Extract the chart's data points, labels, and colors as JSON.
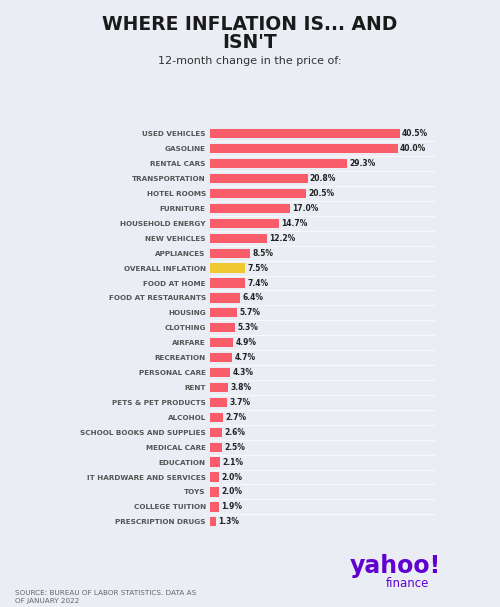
{
  "title_line1": "WHERE INFLATION IS... AND",
  "title_line2": "ISN'T",
  "subtitle": "12-month change in the price of:",
  "categories": [
    "USED VEHICLES",
    "GASOLINE",
    "RENTAL CARS",
    "TRANSPORTATION",
    "HOTEL ROOMS",
    "FURNITURE",
    "HOUSEHOLD ENERGY",
    "NEW VEHICLES",
    "APPLIANCES",
    "OVERALL INFLATION",
    "FOOD AT HOME",
    "FOOD AT RESTAURANTS",
    "HOUSING",
    "CLOTHING",
    "AIRFARE",
    "RECREATION",
    "PERSONAL CARE",
    "RENT",
    "PETS & PET PRODUCTS",
    "ALCOHOL",
    "SCHOOL BOOKS AND SUPPLIES",
    "MEDICAL CARE",
    "EDUCATION",
    "IT HARDWARE AND SERVICES",
    "TOYS",
    "COLLEGE TUITION",
    "PRESCRIPTION DRUGS"
  ],
  "values": [
    40.5,
    40.0,
    29.3,
    20.8,
    20.5,
    17.0,
    14.7,
    12.2,
    8.5,
    7.5,
    7.4,
    6.4,
    5.7,
    5.3,
    4.9,
    4.7,
    4.3,
    3.8,
    3.7,
    2.7,
    2.6,
    2.5,
    2.1,
    2.0,
    2.0,
    1.9,
    1.3
  ],
  "bar_colors": [
    "#f95d6a",
    "#f95d6a",
    "#f95d6a",
    "#f95d6a",
    "#f95d6a",
    "#f95d6a",
    "#f95d6a",
    "#f95d6a",
    "#f95d6a",
    "#f0c830",
    "#f95d6a",
    "#f95d6a",
    "#f95d6a",
    "#f95d6a",
    "#f95d6a",
    "#f95d6a",
    "#f95d6a",
    "#f95d6a",
    "#f95d6a",
    "#f95d6a",
    "#f95d6a",
    "#f95d6a",
    "#f95d6a",
    "#f95d6a",
    "#f95d6a",
    "#f95d6a",
    "#f95d6a"
  ],
  "background_color": "#eaedf4",
  "title_color": "#1a1a1a",
  "label_color": "#555555",
  "value_color": "#222222",
  "footer_text": "SOURCE: BUREAU OF LABOR STATISTICS. DATA AS\nOF JANUARY 2022",
  "yahoo_color": "#6001d2"
}
